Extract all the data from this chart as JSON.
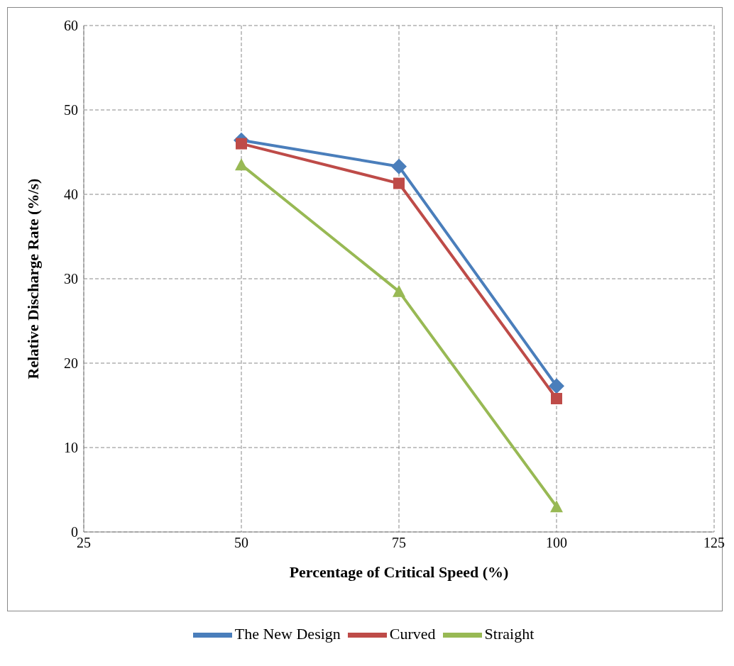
{
  "chart_data": {
    "type": "line",
    "xlabel": "Percentage of Critical Speed (%)",
    "ylabel": "Relative Discharge Rate (%/s)",
    "x": [
      50,
      75,
      100
    ],
    "xlim": [
      25,
      125
    ],
    "xticks": [
      25,
      50,
      75,
      100,
      125
    ],
    "ylim": [
      0,
      60
    ],
    "yticks": [
      0,
      10,
      20,
      30,
      40,
      50,
      60
    ],
    "grid": true,
    "legend": "bottom",
    "line_style": "solid",
    "series": [
      {
        "name": "The New Design",
        "color": "#4a7ebb",
        "marker": "diamond",
        "values": [
          46.4,
          43.3,
          17.3
        ]
      },
      {
        "name": "Curved",
        "color": "#be4b48",
        "marker": "square",
        "values": [
          46.0,
          41.3,
          15.8
        ]
      },
      {
        "name": "Straight",
        "color": "#98b954",
        "marker": "triangle",
        "values": [
          43.5,
          28.5,
          3.0
        ]
      }
    ]
  }
}
